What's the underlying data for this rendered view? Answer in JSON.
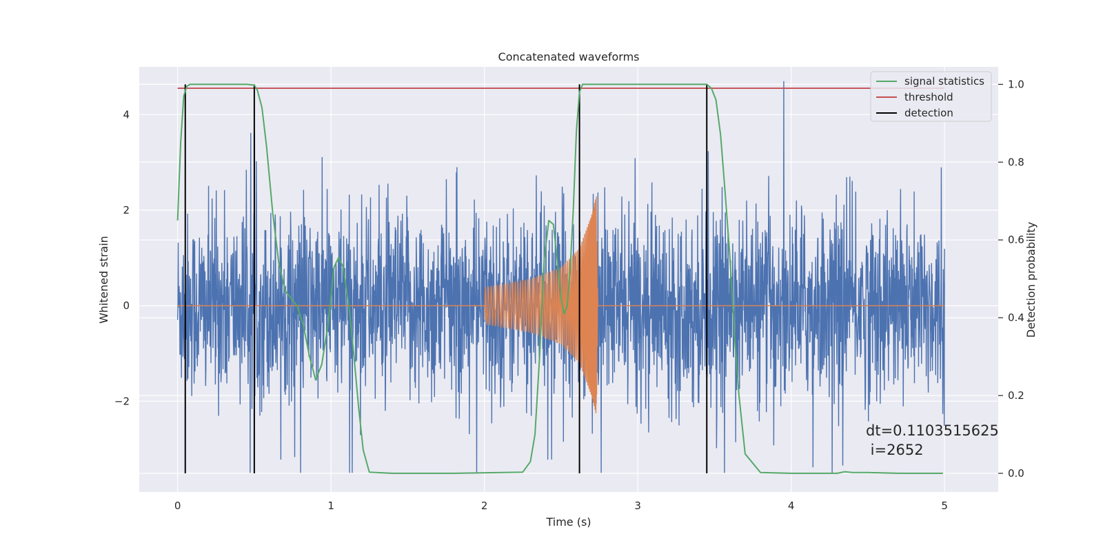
{
  "chart_data": {
    "type": "line",
    "title": "Concatenated waveforms",
    "xlabel": "Time (s)",
    "ylabel": "Whitened strain",
    "y2label": "Detection probability",
    "xlim": [
      -0.25,
      5.35
    ],
    "ylim": [
      -3.9,
      5.0
    ],
    "y2lim": [
      -0.048,
      1.045
    ],
    "xticks": [
      0,
      1,
      2,
      3,
      4,
      5
    ],
    "yticks": [
      -2,
      0,
      2,
      4
    ],
    "y2ticks": [
      0.0,
      0.2,
      0.4,
      0.6,
      0.8,
      1.0
    ],
    "grid": true,
    "legend_position": "top-right",
    "legend": [
      "signal statistics",
      "threshold",
      "detection"
    ],
    "annotation": [
      "dt=0.1103515625",
      " i=2652"
    ],
    "series": [
      {
        "name": "",
        "axis": "left",
        "kind": "noise",
        "x_range": [
          0,
          5
        ],
        "amplitude_sd": 1.0,
        "approx_range": [
          -3.5,
          4.7
        ],
        "color": "#4c72b0"
      },
      {
        "name": "",
        "axis": "left",
        "kind": "chirp",
        "x": [
          0,
          2.0,
          2.0,
          2.3,
          2.5,
          2.62,
          2.7,
          2.73,
          2.74,
          5.0
        ],
        "envelope": [
          0,
          0,
          0.38,
          0.55,
          0.8,
          1.2,
          1.9,
          2.3,
          0,
          0
        ],
        "color": "#dd8452"
      },
      {
        "name": "signal statistics",
        "axis": "right",
        "x": [
          0.0,
          0.02,
          0.04,
          0.06,
          0.08,
          0.12,
          0.2,
          0.3,
          0.45,
          0.5,
          0.52,
          0.55,
          0.58,
          0.62,
          0.66,
          0.7,
          0.74,
          0.78,
          0.82,
          0.86,
          0.9,
          0.94,
          0.98,
          1.02,
          1.05,
          1.08,
          1.12,
          1.15,
          1.18,
          1.21,
          1.25,
          1.4,
          1.8,
          2.25,
          2.3,
          2.33,
          2.36,
          2.39,
          2.42,
          2.45,
          2.48,
          2.5,
          2.52,
          2.54,
          2.56,
          2.58,
          2.6,
          2.62,
          2.64,
          2.7,
          3.0,
          3.3,
          3.45,
          3.48,
          3.51,
          3.54,
          3.57,
          3.6,
          3.63,
          3.66,
          3.7,
          3.8,
          4.0,
          4.3,
          4.35,
          4.4,
          4.5,
          4.7,
          4.99
        ],
        "y": [
          0.65,
          0.85,
          0.97,
          0.995,
          1.0,
          1.0,
          1.0,
          1.0,
          1.0,
          0.998,
          0.985,
          0.94,
          0.84,
          0.67,
          0.54,
          0.47,
          0.45,
          0.43,
          0.38,
          0.3,
          0.24,
          0.28,
          0.38,
          0.53,
          0.555,
          0.53,
          0.42,
          0.3,
          0.17,
          0.06,
          0.003,
          0.0,
          0.0,
          0.003,
          0.03,
          0.1,
          0.3,
          0.55,
          0.65,
          0.64,
          0.53,
          0.45,
          0.41,
          0.43,
          0.53,
          0.68,
          0.88,
          0.98,
          1.0,
          1.0,
          1.0,
          1.0,
          1.0,
          0.99,
          0.96,
          0.87,
          0.72,
          0.56,
          0.36,
          0.2,
          0.05,
          0.002,
          0.0,
          0.0,
          0.004,
          0.002,
          0.002,
          0.0,
          0.0
        ],
        "color": "#55a868"
      },
      {
        "name": "threshold",
        "axis": "right",
        "x": [
          0,
          5
        ],
        "y": [
          0.99,
          0.99
        ],
        "color": "#c44e52"
      }
    ],
    "detections": [
      0.05,
      0.5,
      2.62,
      3.45
    ],
    "detection_color": "#000000"
  }
}
